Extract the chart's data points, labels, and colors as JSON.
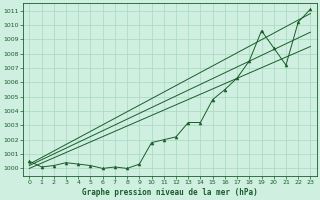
{
  "title": "Graphe pression niveau de la mer (hPa)",
  "background_color": "#cff0e0",
  "grid_color": "#a8d8c0",
  "line_color": "#1a5c2a",
  "xlim": [
    -0.5,
    23.5
  ],
  "ylim": [
    999.5,
    1011.5
  ],
  "yticks": [
    1000,
    1001,
    1002,
    1003,
    1004,
    1005,
    1006,
    1007,
    1008,
    1009,
    1010,
    1011
  ],
  "xticks": [
    0,
    1,
    2,
    3,
    4,
    5,
    6,
    7,
    8,
    9,
    10,
    11,
    12,
    13,
    14,
    15,
    16,
    17,
    18,
    19,
    20,
    21,
    22,
    23
  ],
  "series_main": [
    1000.5,
    1000.1,
    1000.2,
    1000.4,
    1000.3,
    1000.2,
    1000.0,
    1000.1,
    1000.0,
    1000.3,
    1001.8,
    1002.0,
    1002.2,
    1003.2,
    1003.2,
    1004.8,
    1005.5,
    1006.3,
    1007.5,
    1009.6,
    1008.4,
    1007.2,
    1010.2,
    1011.1
  ],
  "trend1_y0": 1000.3,
  "trend1_y1": 1010.8,
  "trend2_y0": 1000.2,
  "trend2_y1": 1009.5,
  "trend3_y0": 1000.0,
  "trend3_y1": 1008.5
}
